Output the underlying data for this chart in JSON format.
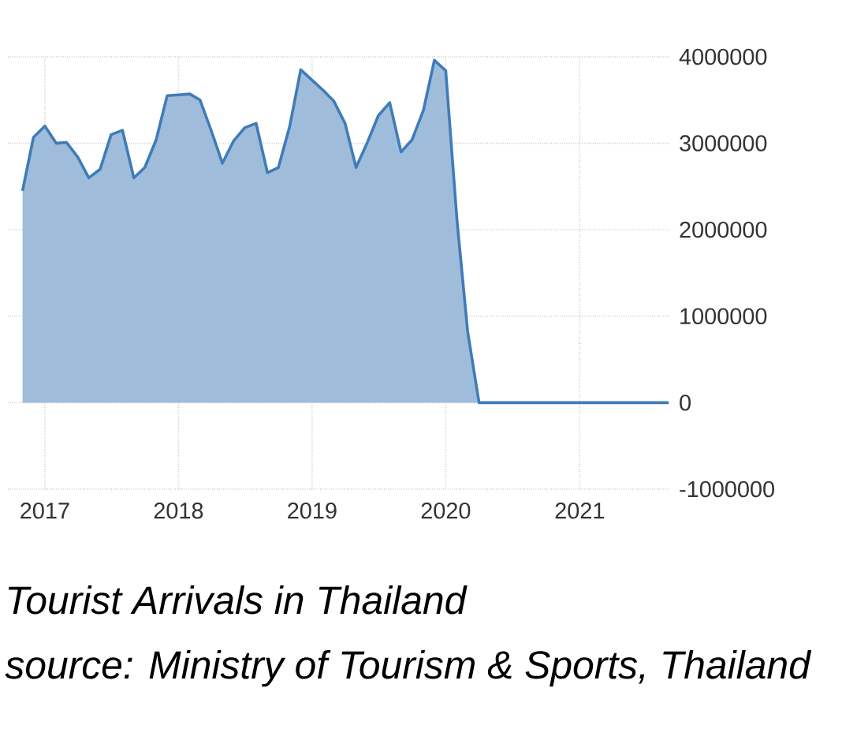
{
  "chart_data": {
    "type": "area",
    "title": "Tourist Arrivals in Thailand",
    "annotations": [
      "source: Ministry of Tourism & Sports, Thailand"
    ],
    "x": [
      "2016-11",
      "2016-12",
      "2017-01",
      "2017-02",
      "2017-03",
      "2017-04",
      "2017-05",
      "2017-06",
      "2017-07",
      "2017-08",
      "2017-09",
      "2017-10",
      "2017-11",
      "2017-12",
      "2018-01",
      "2018-02",
      "2018-03",
      "2018-04",
      "2018-05",
      "2018-06",
      "2018-07",
      "2018-08",
      "2018-09",
      "2018-10",
      "2018-11",
      "2018-12",
      "2019-01",
      "2019-02",
      "2019-03",
      "2019-04",
      "2019-05",
      "2019-06",
      "2019-07",
      "2019-08",
      "2019-09",
      "2019-10",
      "2019-11",
      "2019-12",
      "2020-01",
      "2020-02",
      "2020-03",
      "2020-04",
      "2020-05",
      "2020-06",
      "2020-07",
      "2020-08",
      "2020-09",
      "2020-10",
      "2020-11",
      "2020-12",
      "2021-01",
      "2021-02",
      "2021-03",
      "2021-04",
      "2021-05",
      "2021-06",
      "2021-07",
      "2021-08",
      "2021-09"
    ],
    "values": [
      2450000,
      3070000,
      3200000,
      3000000,
      3010000,
      2840000,
      2600000,
      2700000,
      3100000,
      3150000,
      2600000,
      2720000,
      3040000,
      3550000,
      3560000,
      3570000,
      3500000,
      3140000,
      2770000,
      3030000,
      3180000,
      3230000,
      2660000,
      2720000,
      3200000,
      3850000,
      3730000,
      3610000,
      3490000,
      3230000,
      2720000,
      3010000,
      3320000,
      3470000,
      2900000,
      3040000,
      3380000,
      3960000,
      3840000,
      2100000,
      820000,
      0,
      0,
      0,
      0,
      0,
      0,
      0,
      0,
      0,
      0,
      0,
      0,
      0,
      0,
      0,
      0,
      0,
      0
    ],
    "color": "#3f7cb8",
    "xlim": [
      "2016-09-22",
      "2021-09-05"
    ],
    "xticks": [
      "2017",
      "2018",
      "2019",
      "2020",
      "2021"
    ],
    "ylim": [
      -1000000,
      4000000
    ],
    "yticks": [
      -1000000,
      0,
      1000000,
      2000000,
      3000000,
      4000000
    ],
    "grid": true
  }
}
